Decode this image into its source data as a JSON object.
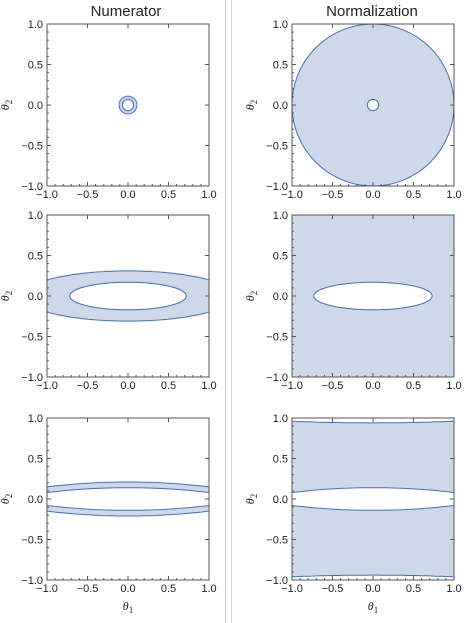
{
  "columns": [
    "Numerator",
    "Normalization"
  ],
  "colors": {
    "fill": "#cdd8e9",
    "stroke": "#4a6fb0",
    "axis": "#555555",
    "text": "#222222"
  },
  "chart_data": [
    {
      "type": "area",
      "row": 1,
      "column": "Numerator",
      "xlim": [
        -1.0,
        1.0
      ],
      "ylim": [
        -1.0,
        1.0
      ],
      "xticks": [
        "−1.0",
        "−0.5",
        "0.0",
        "0.5",
        "1.0"
      ],
      "yticks": [
        "−1.0",
        "−0.5",
        "0.0",
        "0.5",
        "1.0"
      ],
      "xlabel": "",
      "ylabel": "θ2",
      "region": {
        "shape": "annulus",
        "outer_radius": 0.11,
        "inner_radius": 0.07
      }
    },
    {
      "type": "area",
      "row": 1,
      "column": "Normalization",
      "xlim": [
        -1.0,
        1.0
      ],
      "ylim": [
        -1.0,
        1.0
      ],
      "xticks": [
        "−1.0",
        "−0.5",
        "0.0",
        "0.5",
        "1.0"
      ],
      "yticks": [
        "−1.0",
        "−0.5",
        "0.0",
        "0.5",
        "1.0"
      ],
      "xlabel": "",
      "ylabel": "θ2",
      "region": {
        "shape": "annulus",
        "outer_radius": 1.0,
        "inner_radius": 0.07
      }
    },
    {
      "type": "area",
      "row": 2,
      "column": "Numerator",
      "xlim": [
        -1.0,
        1.0
      ],
      "ylim": [
        -1.0,
        1.0
      ],
      "xticks": [
        "−1.0",
        "−0.5",
        "0.0",
        "0.5",
        "1.0"
      ],
      "yticks": [
        "−1.0",
        "−0.5",
        "0.0",
        "0.5",
        "1.0"
      ],
      "xlabel": "",
      "ylabel": "θ2",
      "region": {
        "shape": "clipped-elliptic-ring",
        "outer": {
          "a": 1.3,
          "b": 0.31
        },
        "inner": {
          "a": 0.72,
          "b": 0.17
        },
        "x_clip": 1.0
      }
    },
    {
      "type": "area",
      "row": 2,
      "column": "Normalization",
      "xlim": [
        -1.0,
        1.0
      ],
      "ylim": [
        -1.0,
        1.0
      ],
      "xticks": [
        "−1.0",
        "−0.5",
        "0.0",
        "0.5",
        "1.0"
      ],
      "yticks": [
        "−1.0",
        "−0.5",
        "0.0",
        "0.5",
        "1.0"
      ],
      "xlabel": "",
      "ylabel": "θ2",
      "region": {
        "shape": "square-minus-ellipse",
        "half_width": 1.0,
        "inner": {
          "a": 0.73,
          "b": 0.17
        }
      }
    },
    {
      "type": "area",
      "row": 3,
      "column": "Numerator",
      "xlim": [
        -1.0,
        1.0
      ],
      "ylim": [
        -1.0,
        1.0
      ],
      "xticks": [
        "−1.0",
        "−0.5",
        "0.0",
        "0.5",
        "1.0"
      ],
      "yticks": [
        "−1.0",
        "−0.5",
        "0.0",
        "0.5",
        "1.0"
      ],
      "xlabel": "θ1",
      "ylabel": "θ2",
      "region": {
        "shape": "two-arcs",
        "outer_top_center": 0.21,
        "outer_top_edge": 0.15,
        "inner_top_center": 0.14,
        "inner_top_edge": 0.08
      }
    },
    {
      "type": "area",
      "row": 3,
      "column": "Normalization",
      "xlim": [
        -1.0,
        1.0
      ],
      "ylim": [
        -1.0,
        1.0
      ],
      "xticks": [
        "−1.0",
        "−0.5",
        "0.0",
        "0.5",
        "1.0"
      ],
      "yticks": [
        "−1.0",
        "−0.5",
        "0.0",
        "0.5",
        "1.0"
      ],
      "xlabel": "θ1",
      "ylabel": "θ2",
      "region": {
        "shape": "two-bands",
        "top_center": 0.94,
        "top_edge": 0.96,
        "inner_top_center": 0.14,
        "inner_top_edge": 0.08
      }
    }
  ]
}
